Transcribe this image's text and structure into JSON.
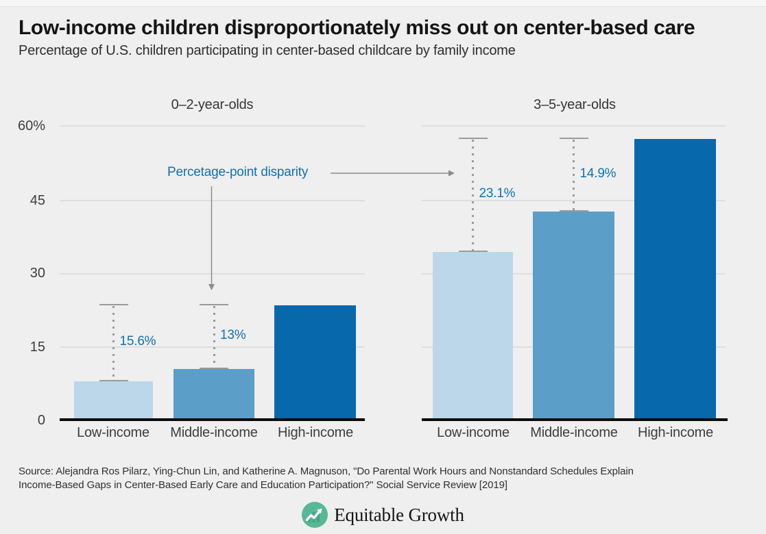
{
  "page": {
    "title": "Low-income children disproportionately miss out on center-based care",
    "subtitle": "Percentage of U.S. children participating in center-based childcare by family income",
    "background_color": "#efefef"
  },
  "annotation": {
    "label": "Percetage-point disparity",
    "color": "#1171b0"
  },
  "chart_data": {
    "type": "bar",
    "title": "Percentage of U.S. children participating in center-based childcare by family income",
    "unit": "percent",
    "categories": [
      "Low-income",
      "Middle-income",
      "High-income"
    ],
    "y_axis": {
      "ticks": [
        "60%",
        "45",
        "30",
        "15",
        "0"
      ],
      "tick_values": [
        60,
        45,
        30,
        15,
        0
      ],
      "ylim": [
        0,
        60
      ],
      "grid": true
    },
    "panels": [
      {
        "title": "0–2-year-olds",
        "values": [
          7.9,
          10.5,
          23.5
        ],
        "disparities": [
          {
            "category": "Low-income",
            "label": "15.6%",
            "value": 15.6
          },
          {
            "category": "Middle-income",
            "label": "13%",
            "value": 13
          }
        ]
      },
      {
        "title": "3–5-year-olds",
        "values": [
          34.3,
          42.5,
          57.4
        ],
        "disparities": [
          {
            "category": "Low-income",
            "label": "23.1%",
            "value": 23.1
          },
          {
            "category": "Middle-income",
            "label": "14.9%",
            "value": 14.9
          }
        ]
      }
    ],
    "colors": {
      "low": "#bcd6ea",
      "middle": "#5b9ec7",
      "high": "#0768ab",
      "grid": "#dedede",
      "axis_text": "#3d3d3d",
      "dotted_line": "#9a9a9a",
      "arrow": "#8c8c8c"
    },
    "legend_position": "none"
  },
  "source": {
    "line1": "Source: Alejandra Ros Pilarz, Ying-Chun Lin, and Katherine A. Magnuson, \"Do Parental Work Hours and Nonstandard Schedules Explain",
    "line2": "Income-Based Gaps in Center-Based Early Care and Education Participation?\" Social Service Review [2019]"
  },
  "logo": {
    "text": "Equitable Growth",
    "icon": "trend-line-circle-icon",
    "icon_color": "#58b795"
  }
}
